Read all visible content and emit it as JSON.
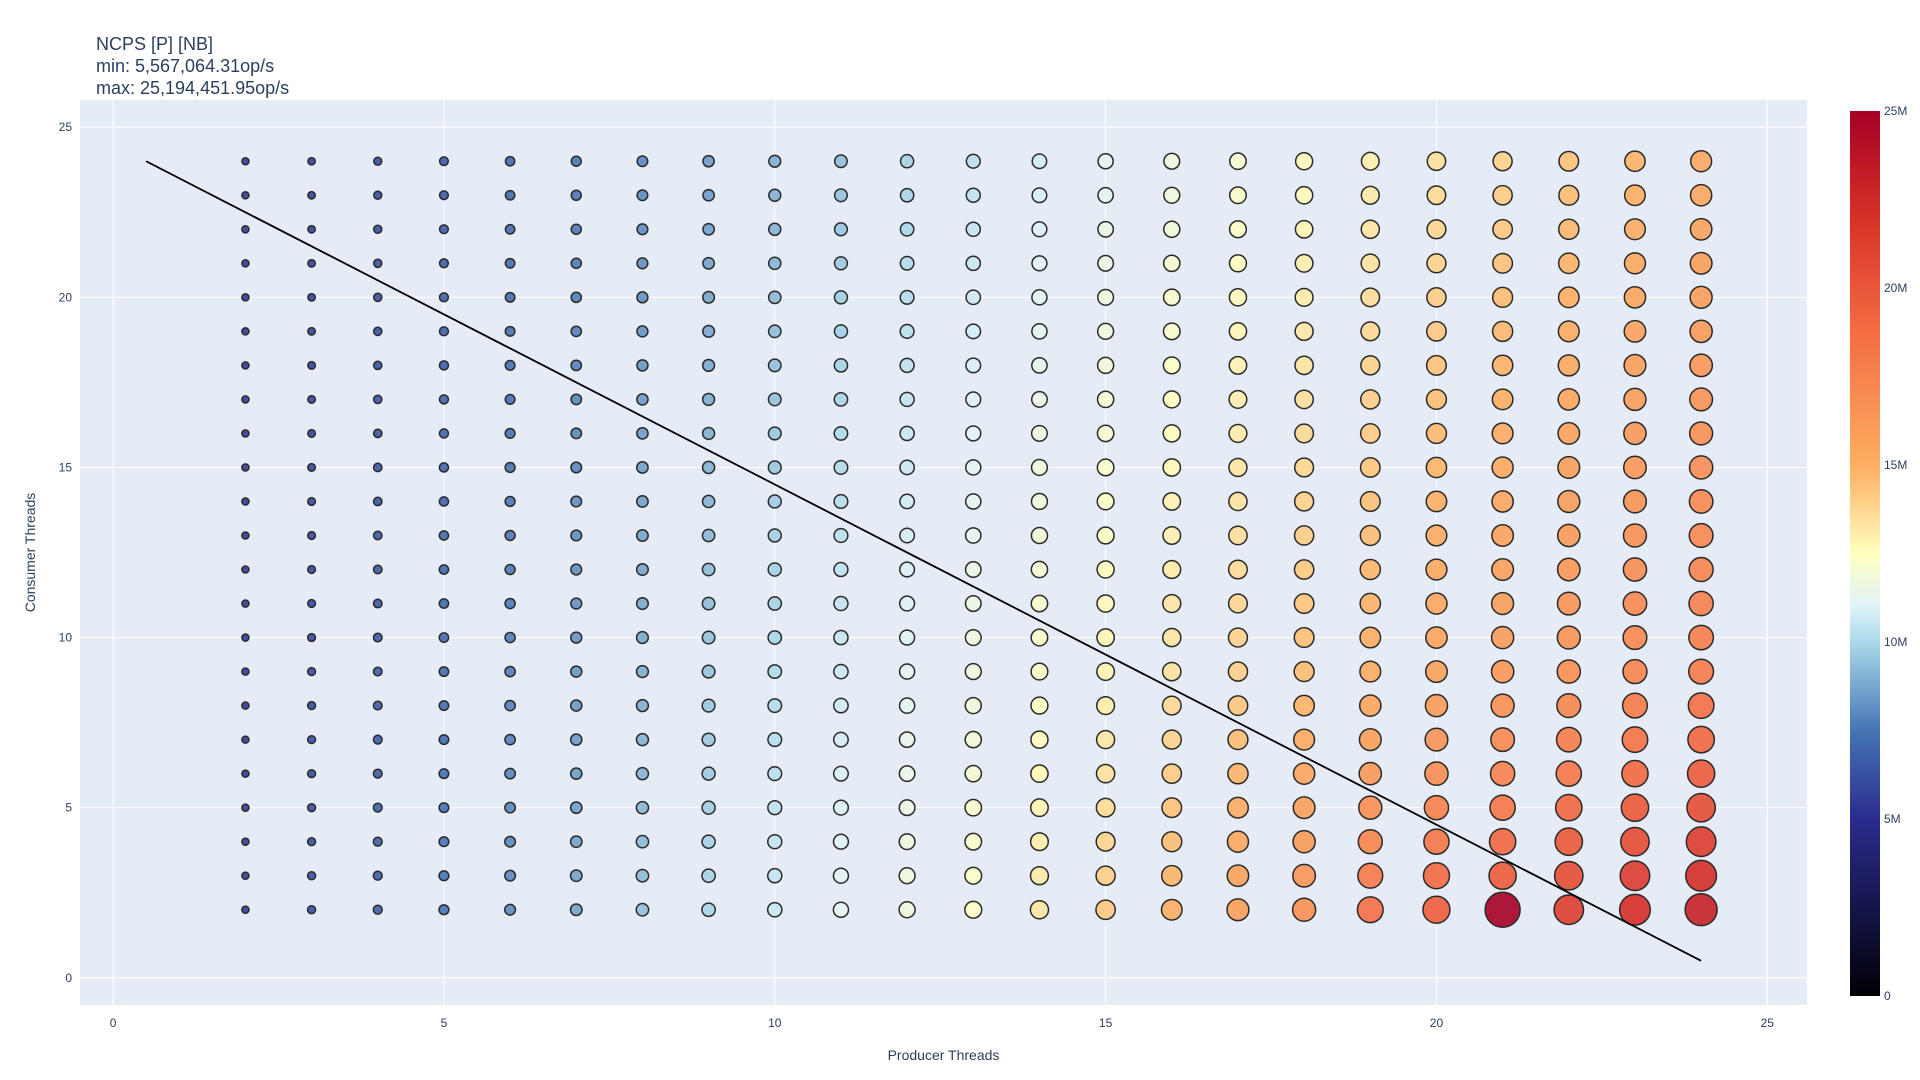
{
  "chart_data": {
    "type": "scatter",
    "title_lines": [
      "NCPS [P] [NB]",
      "min: 5,567,064.31op/s",
      "max: 25,194,451.95op/s"
    ],
    "xlabel": "Producer Threads",
    "ylabel": "Consumer Threads",
    "xlim": [
      -0.5,
      25.6
    ],
    "ylim": [
      -0.8,
      25.8
    ],
    "xticks": [
      0,
      5,
      10,
      15,
      20,
      25
    ],
    "yticks": [
      0,
      5,
      10,
      15,
      20,
      25
    ],
    "grid": true,
    "colorscale": "RdYlBu (reversed)",
    "colorbar": {
      "range": [
        0,
        25000000
      ],
      "tick_values": [
        0,
        5000000,
        10000000,
        15000000,
        20000000,
        25000000
      ],
      "tick_labels": [
        "0",
        "5M",
        "10M",
        "15M",
        "20M",
        "25M"
      ]
    },
    "producer_threads": [
      2,
      3,
      4,
      5,
      6,
      7,
      8,
      9,
      10,
      11,
      12,
      13,
      14,
      15,
      16,
      17,
      18,
      19,
      20,
      21,
      22,
      23,
      24
    ],
    "consumer_threads": [
      2,
      3,
      4,
      5,
      6,
      7,
      8,
      9,
      10,
      11,
      12,
      13,
      14,
      15,
      16,
      17,
      18,
      19,
      20,
      21,
      22,
      23,
      24
    ],
    "throughput_model": "approximate op/s read from marker color/size; higher producers and lower consumers give higher throughput",
    "trend_line": {
      "x": [
        0.5,
        24
      ],
      "y": [
        24,
        0.5
      ]
    },
    "series": [
      {
        "name": "NCPS",
        "marker_style": "bubble, size and color by op/s"
      }
    ]
  },
  "colors": {
    "plot_bg": "#e5ecf6",
    "grid": "#ffffff",
    "text": "#2a3f5f",
    "marker_outline": "#2a2a2a",
    "trend_line": "#000000"
  }
}
